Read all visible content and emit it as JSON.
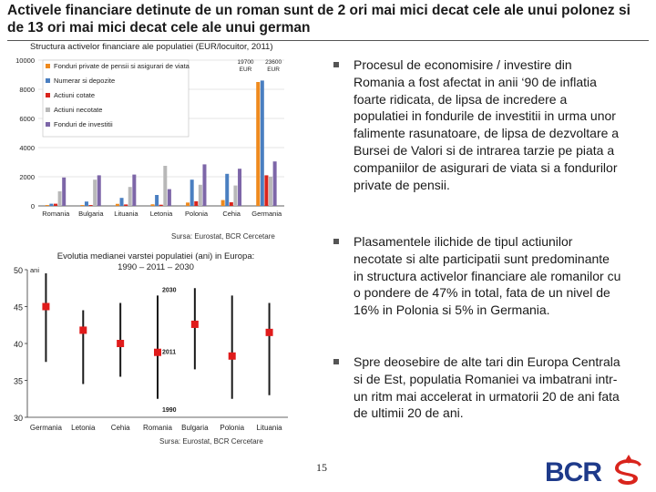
{
  "title": "Activele financiare detinute de un roman sunt de 2 ori mai mici decat cele ale unui polonez si de 13 ori mai mici decat cele ale unui german",
  "chart1_title": "Structura activelor financiare ale populatiei (EUR/locuitor, 2011)",
  "chart1_source": "Sursa: Eurostat, BCR Cercetare",
  "chart2_title_line1": "Evolutia medianei varstei populatiei (ani) in Europa:",
  "chart2_title_line2": "1990 – 2011 – 2030",
  "chart2_source": "Sursa: Eurostat, BCR Cercetare",
  "bullets": [
    "Procesul de economisire / investire din Romania a fost afectat in anii ‘90 de inflatia foarte ridicata, de lipsa de incredere a populatiei in fondurile de investitii in urma unor falimente rasunatoare, de lipsa de dezvoltare a Bursei de Valori si de intrarea tarzie pe piata a companiilor de asigurari de viata si a fondurilor private de pensii.",
    "Plasamentele ilichide de tipul actiunilor necotate si alte participatii sunt predominante in structura activelor financiare ale romanilor cu o pondere de 47% in total, fata de un nivel de 16% in Polonia si 5% in Germania.",
    "Spre deosebire de alte tari din Europa Centrala si de Est, populatia Romaniei va imbatrani intr-un ritm mai accelerat in urmatorii 20 de ani fata de ultimii 20 de ani."
  ],
  "page_number": "15",
  "logo_text": "BCR",
  "colors": {
    "series_orange": "#ef8a1e",
    "series_blue": "#4a7fc1",
    "series_red": "#d9241c",
    "series_gray": "#b8b8b8",
    "series_purple": "#7d66a8",
    "range_line": "#1a1a1a",
    "marker_2011": "#e01b1b",
    "logo_blue": "#1e3a8a",
    "logo_red": "#d9241c"
  },
  "icons": {
    "bullet": "square-bullet-icon",
    "logo_symbol": "bcr-s-symbol-icon"
  },
  "chart_data": [
    {
      "type": "bar",
      "title": "Structura activelor financiare ale populatiei (EUR/locuitor, 2011)",
      "categories": [
        "Romania",
        "Bulgaria",
        "Lituania",
        "Letonia",
        "Polonia",
        "Cehia",
        "Germania"
      ],
      "ylim": [
        0,
        10000
      ],
      "yticks": [
        0,
        2000,
        4000,
        6000,
        8000,
        10000
      ],
      "grid": true,
      "legend_position": "top-left",
      "series": [
        {
          "name": "Fonduri private de pensii si asigurari de viata",
          "color": "#ef8a1e",
          "values": [
            60,
            60,
            140,
            110,
            230,
            400,
            8500
          ]
        },
        {
          "name": "Numerar si depozite",
          "color": "#4a7fc1",
          "values": [
            150,
            300,
            550,
            750,
            1800,
            2200,
            8600
          ]
        },
        {
          "name": "Actiuni cotate",
          "color": "#d9241c",
          "values": [
            150,
            60,
            100,
            80,
            320,
            250,
            2100
          ]
        },
        {
          "name": "Actiuni necotate",
          "color": "#b8b8b8",
          "values": [
            1000,
            1800,
            1300,
            2750,
            1450,
            1400,
            2000
          ]
        },
        {
          "name": "Fonduri de investitii",
          "color": "#7d66a8",
          "values": [
            1950,
            2100,
            2150,
            1150,
            2850,
            2550,
            3050
          ]
        }
      ],
      "annotations": [
        {
          "category": "Germania",
          "series": "Fonduri private de pensii si asigurari de viata",
          "lines": [
            "19700",
            "EUR"
          ]
        },
        {
          "category": "Germania",
          "series": "Numerar si depozite",
          "lines": [
            "23600",
            "EUR"
          ]
        }
      ]
    },
    {
      "type": "range",
      "title": "Evolutia medianei varstei populatiei (ani) in Europa: 1990 – 2011 – 2030",
      "categories": [
        "Germania",
        "Letonia",
        "Cehia",
        "Romania",
        "Bulgaria",
        "Polonia",
        "Lituania"
      ],
      "ylim": [
        30,
        50
      ],
      "yticks": [
        30,
        35,
        40,
        45,
        50
      ],
      "y_unit_label": "ani",
      "y_1990": [
        37.5,
        34.5,
        35.5,
        32.5,
        36.5,
        32.5,
        33
      ],
      "y_2011": [
        45,
        41.8,
        40,
        38.8,
        42.6,
        38.3,
        41.5
      ],
      "y_2030": [
        49.5,
        44.5,
        45.5,
        46.5,
        47.5,
        46.5,
        45.5
      ],
      "annotations": [
        {
          "category": "Romania",
          "text": "2030",
          "year": "2030"
        },
        {
          "category": "Romania",
          "text": "2011",
          "year": "2011"
        },
        {
          "category": "Romania",
          "text": "1990",
          "year": "1990"
        }
      ]
    }
  ]
}
